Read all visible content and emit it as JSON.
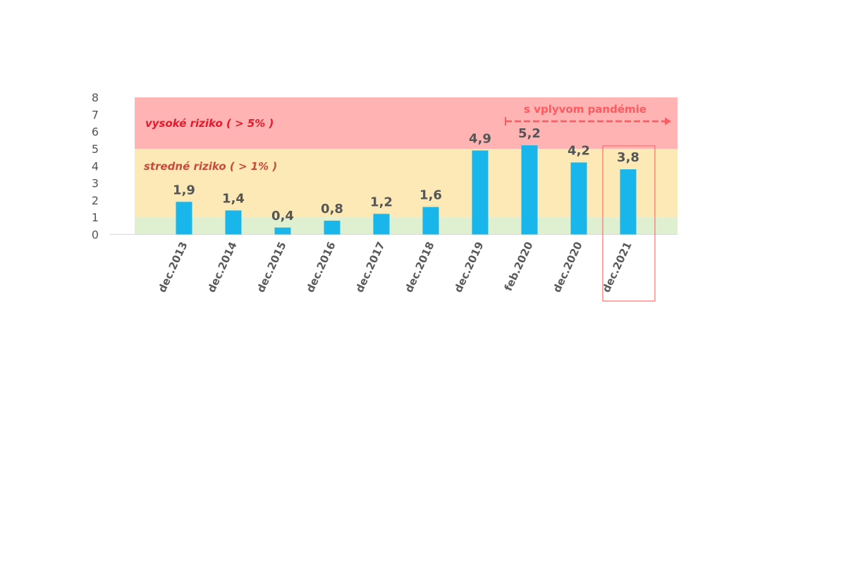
{
  "chart_data": {
    "type": "bar",
    "title": "",
    "xlabel": "",
    "ylabel": "",
    "categories": [
      "dec.2013",
      "dec.2014",
      "dec.2015",
      "dec.2016",
      "dec.2017",
      "dec.2018",
      "dec.2019",
      "feb.2020",
      "dec.2020",
      "dec.2021"
    ],
    "values": [
      1.9,
      1.4,
      0.4,
      0.8,
      1.2,
      1.6,
      4.9,
      5.2,
      4.2,
      3.8
    ],
    "value_labels": [
      "1,9",
      "1,4",
      "0,4",
      "0,8",
      "1,2",
      "1,6",
      "4,9",
      "5,2",
      "4,2",
      "3,8"
    ],
    "yticks": [
      "0",
      "1",
      "2",
      "3",
      "4",
      "5",
      "6",
      "7",
      "8"
    ],
    "ylim": [
      0,
      8
    ],
    "grid": false,
    "bar_color": "#18b6ea",
    "zones": [
      {
        "from": 0,
        "to": 1,
        "color": "#dff0d0",
        "label": ""
      },
      {
        "from": 1,
        "to": 5,
        "color": "#fde9b5",
        "label": "stredné riziko ( > 1% )",
        "label_color": "#c84a3e"
      },
      {
        "from": 5,
        "to": 8,
        "color": "#ffb3b3",
        "label": "vysoké riziko ( > 5% )",
        "label_color": "#e8192c"
      }
    ],
    "annotations": {
      "pandemic": {
        "text": "s vplyvom pandémie",
        "from_category": "feb.2020",
        "color": "#ff5a5f"
      },
      "highlighted_category": "dec.2021",
      "highlight_color": "#ff6b6b"
    }
  }
}
